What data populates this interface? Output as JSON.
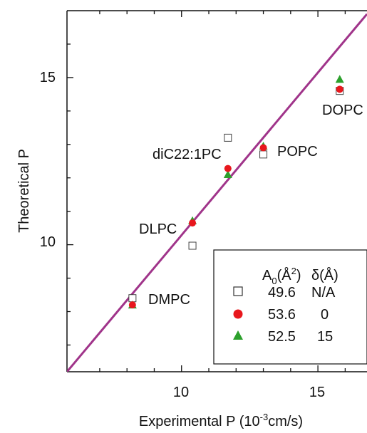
{
  "chart_data": {
    "type": "scatter",
    "xlabel": "Experimental P (10",
    "xlabel_sup": "-3",
    "xlabel_end": "cm/s)",
    "ylabel": "Theoretical P",
    "xlim": [
      5.8,
      16.8
    ],
    "ylim": [
      6.2,
      17.0
    ],
    "x_ticks": [
      10,
      15
    ],
    "y_ticks": [
      10,
      15
    ],
    "fit_line": {
      "x": [
        5.8,
        16.8
      ],
      "y": [
        6.2,
        16.9
      ],
      "color": "#a0348a"
    },
    "points": [
      {
        "lipid": "DMPC",
        "x": 8.2,
        "sq": 8.4,
        "circ": 8.2,
        "tri": 8.2
      },
      {
        "lipid": "DLPC",
        "x": 10.4,
        "sq": 9.97,
        "circ": 10.65,
        "tri": 10.72
      },
      {
        "lipid": "diC22:1PC",
        "x": 11.7,
        "sq": 13.2,
        "circ": 12.28,
        "tri": 12.1
      },
      {
        "lipid": "POPC",
        "x": 13.0,
        "sq": 12.7,
        "circ": 12.9,
        "tri": 12.95
      },
      {
        "lipid": "DOPC",
        "x": 15.8,
        "sq": 14.6,
        "circ": 14.65,
        "tri": 14.95
      }
    ],
    "legend": {
      "header_a0": "A",
      "header_a0_sub": "0",
      "header_a0_unit": "(Å",
      "header_a0_sup": "2",
      "header_a0_close": ")",
      "header_delta": "δ(Å)",
      "rows": [
        {
          "marker": "square",
          "a0": "49.6",
          "delta": "N/A",
          "color": "#333333"
        },
        {
          "marker": "circle",
          "a0": "53.6",
          "delta": "0",
          "color": "#e8171d"
        },
        {
          "marker": "triangle",
          "a0": "52.5",
          "delta": "15",
          "color": "#2ca02c"
        }
      ]
    },
    "labels": {
      "DMPC": "DMPC",
      "DLPC": "DLPC",
      "diC22": "diC22:1PC",
      "POPC": "POPC",
      "DOPC": "DOPC"
    }
  }
}
